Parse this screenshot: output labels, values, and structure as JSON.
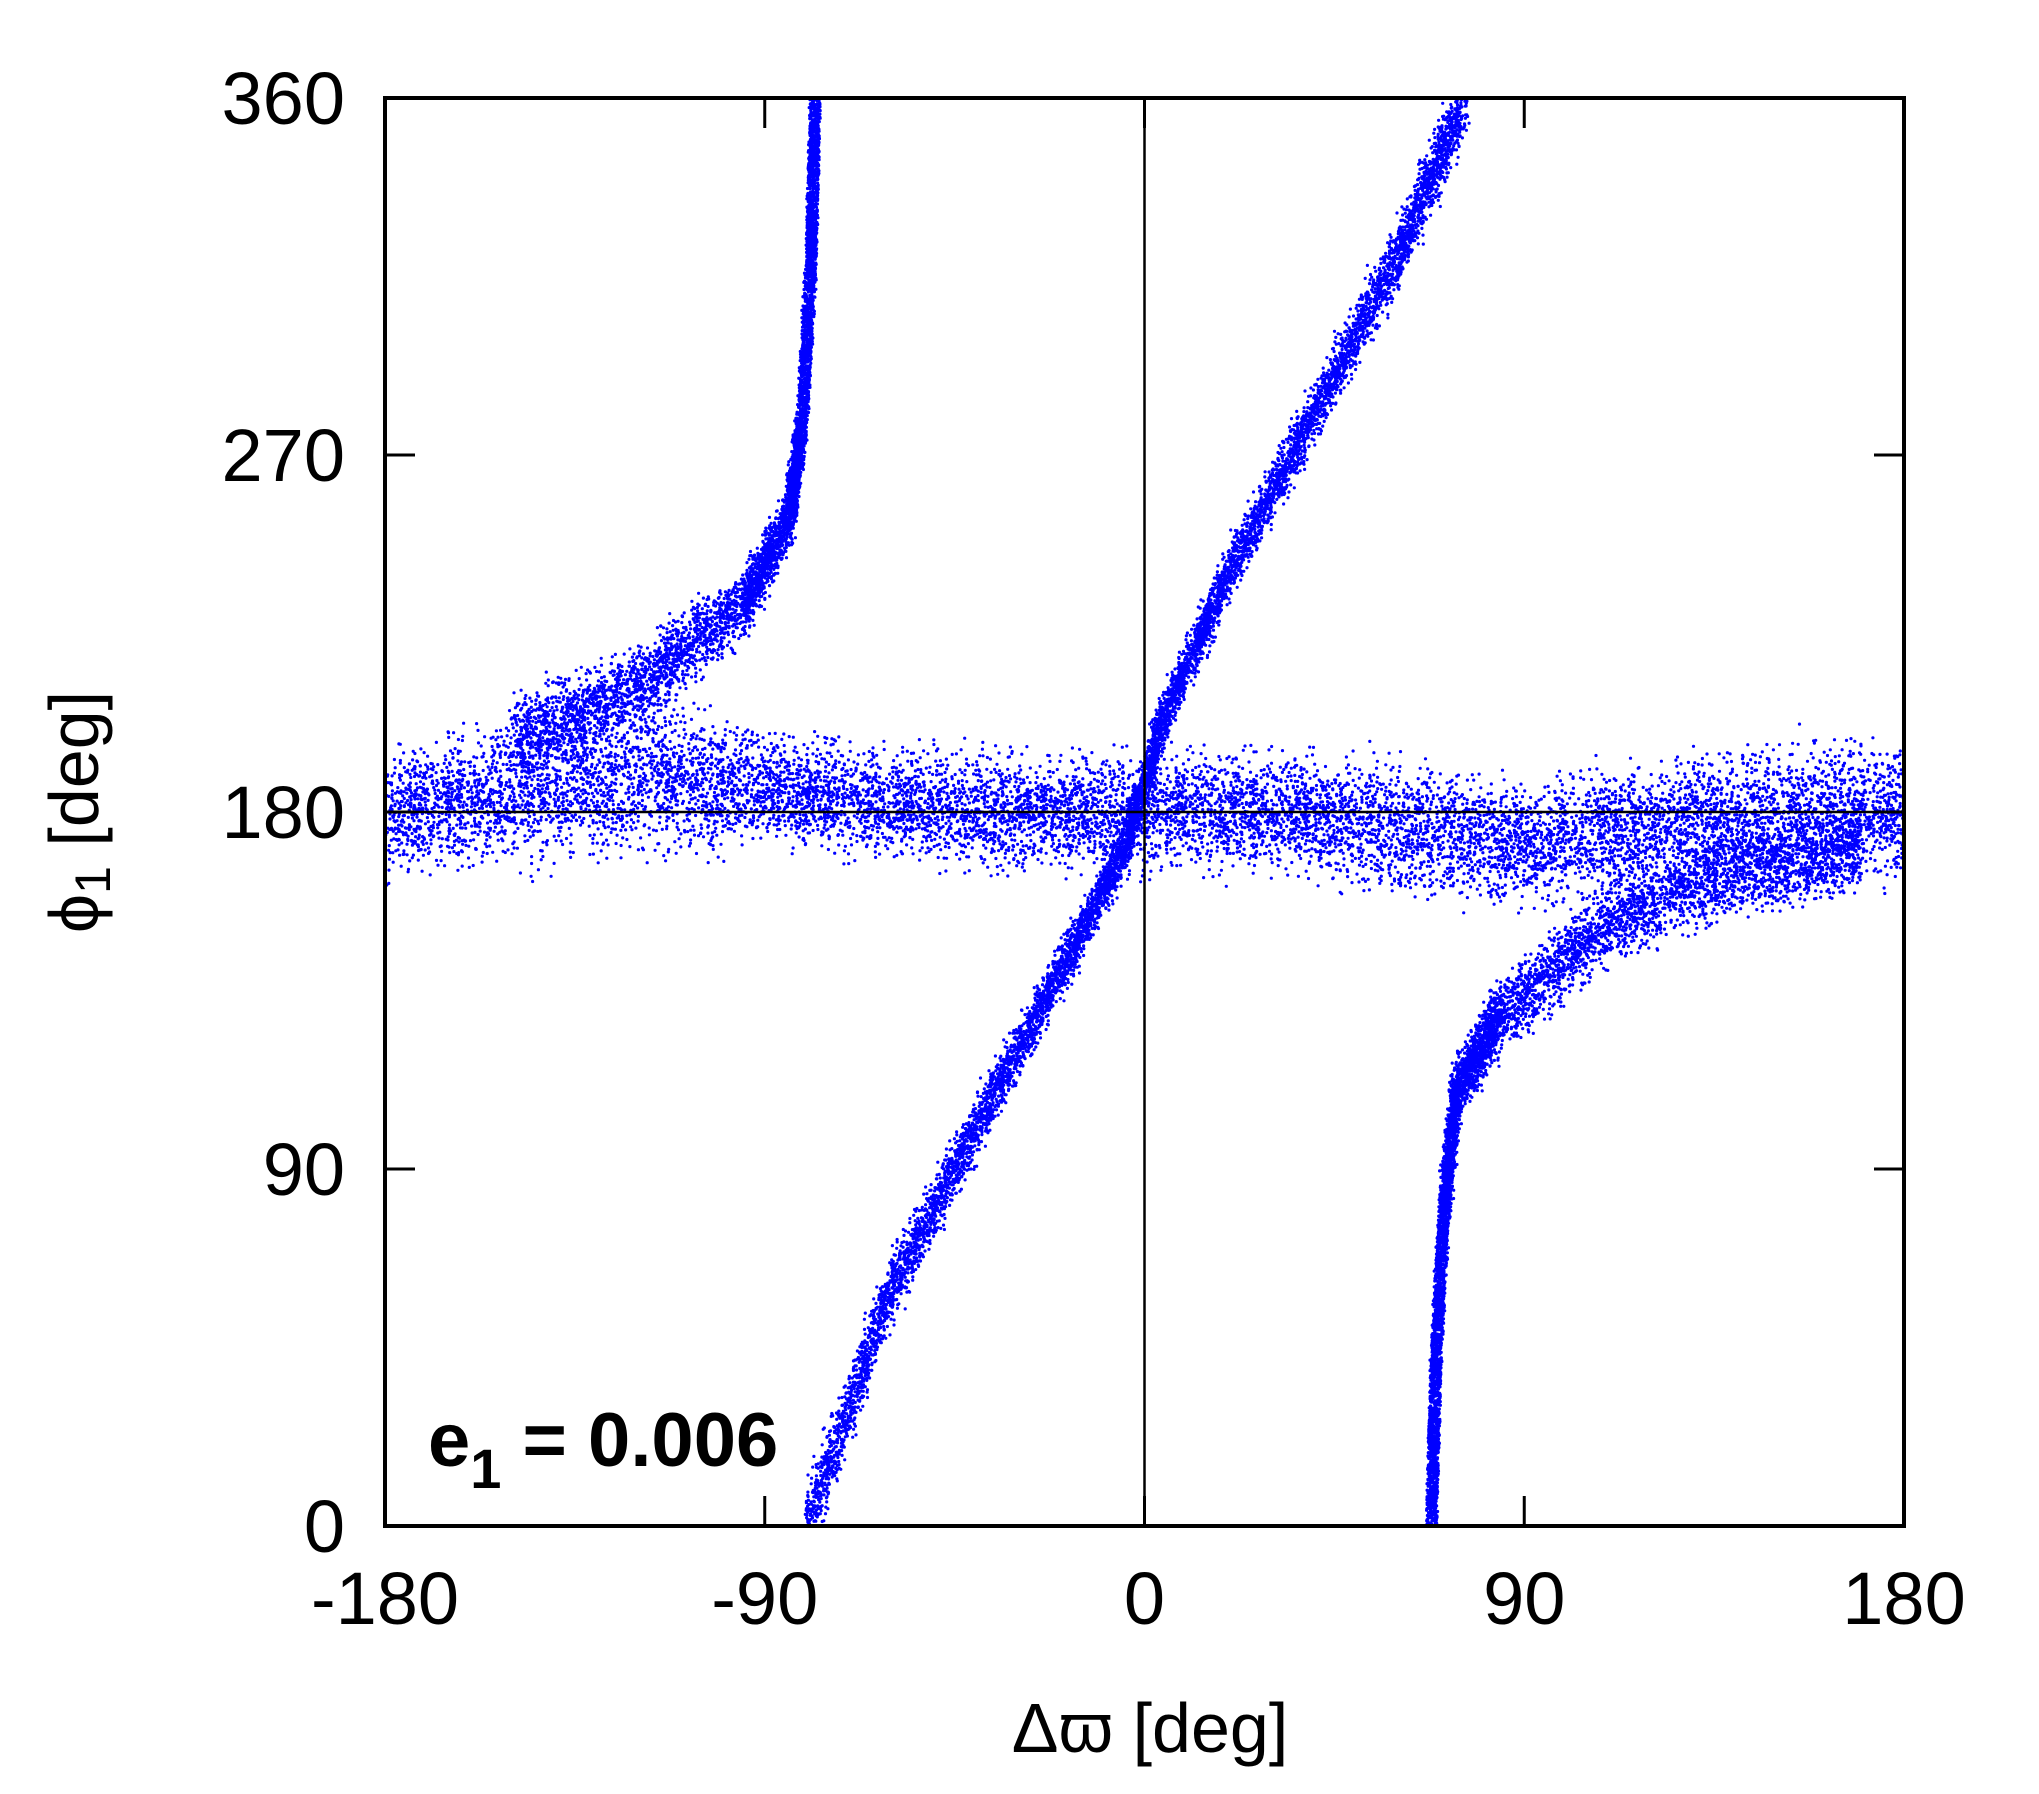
{
  "chart_data": {
    "type": "scatter",
    "x": {
      "label": "Δϖ [deg]",
      "range": [
        -180,
        180
      ],
      "ticks": [
        "-180",
        "-90",
        "0",
        "90",
        "180"
      ]
    },
    "y": {
      "label_symbol": "ϕ",
      "label_sub": "1",
      "label_rest": " [deg]",
      "range": [
        0,
        360
      ],
      "ticks": [
        "0",
        "90",
        "180",
        "270",
        "360"
      ]
    },
    "reference_lines": {
      "x": 0,
      "y": 180
    },
    "annotation": {
      "main": "e",
      "sub": "1",
      "rest": " = 0.006"
    },
    "color": "#0000ff",
    "grid": false,
    "series": [
      {
        "shape": "band",
        "points": [
          [
            -180,
            180
          ],
          [
            -150,
            185
          ],
          [
            -120,
            190
          ],
          [
            -90,
            186
          ],
          [
            -60,
            182
          ],
          [
            -30,
            180
          ],
          [
            0,
            180
          ],
          [
            30,
            180
          ],
          [
            60,
            176
          ],
          [
            90,
            172
          ],
          [
            120,
            176
          ],
          [
            150,
            180
          ],
          [
            180,
            180
          ]
        ],
        "half_width": [
          22,
          24,
          27,
          18,
          18,
          20,
          20,
          20,
          22,
          20,
          22,
          24,
          22
        ]
      },
      {
        "shape": "band",
        "points": [
          [
            -80,
            0
          ],
          [
            -60,
            60
          ],
          [
            -40,
            100
          ],
          [
            -20,
            140
          ],
          [
            -5,
            170
          ],
          [
            5,
            205
          ],
          [
            20,
            240
          ],
          [
            40,
            280
          ],
          [
            60,
            320
          ],
          [
            76,
            360
          ]
        ],
        "half_width": [
          12,
          11,
          10,
          9,
          8,
          8,
          9,
          10,
          11,
          12
        ]
      },
      {
        "shape": "band",
        "points": [
          [
            -78,
            360
          ],
          [
            -79,
            320
          ],
          [
            -81,
            280
          ],
          [
            -84,
            255
          ],
          [
            -95,
            232
          ],
          [
            -120,
            212
          ],
          [
            -150,
            198
          ]
        ],
        "half_width": [
          9,
          9,
          9,
          10,
          12,
          14,
          15
        ]
      },
      {
        "shape": "band",
        "points": [
          [
            68,
            0
          ],
          [
            69,
            40
          ],
          [
            71,
            80
          ],
          [
            74,
            110
          ],
          [
            84,
            128
          ],
          [
            110,
            152
          ],
          [
            140,
            165
          ],
          [
            170,
            170
          ]
        ],
        "half_width": [
          10,
          10,
          10,
          10,
          12,
          14,
          15,
          14
        ]
      }
    ]
  }
}
